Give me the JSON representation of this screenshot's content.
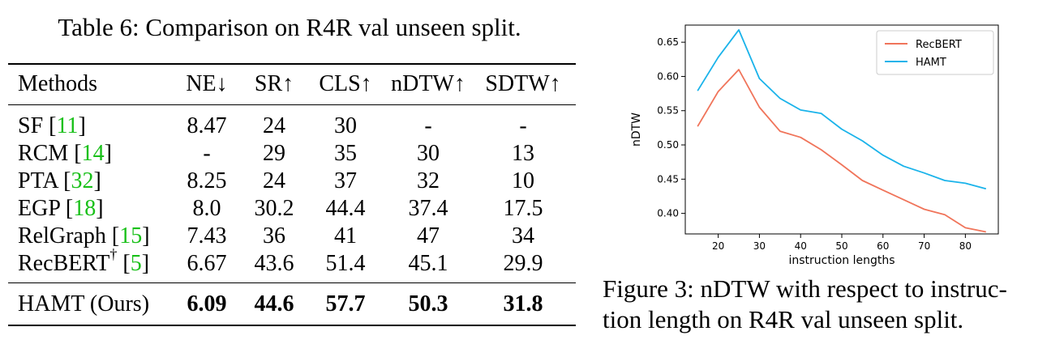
{
  "table": {
    "caption": "Table 6: Comparison on R4R val unseen split.",
    "headers": [
      "Methods",
      "NE↓",
      "SR↑",
      "CLS↑",
      "nDTW↑",
      "SDTW↑"
    ],
    "rows": [
      {
        "method": "SF [",
        "cite": "11",
        "close": "]",
        "dagger": "",
        "ne": "8.47",
        "sr": "24",
        "cls": "30",
        "ndtw": "-",
        "sdtw": "-"
      },
      {
        "method": "RCM [",
        "cite": "14",
        "close": "]",
        "dagger": "",
        "ne": "-",
        "sr": "29",
        "cls": "35",
        "ndtw": "30",
        "sdtw": "13"
      },
      {
        "method": "PTA [",
        "cite": "32",
        "close": "]",
        "dagger": "",
        "ne": "8.25",
        "sr": "24",
        "cls": "37",
        "ndtw": "32",
        "sdtw": "10"
      },
      {
        "method": "EGP [",
        "cite": "18",
        "close": "]",
        "dagger": "",
        "ne": "8.0",
        "sr": "30.2",
        "cls": "44.4",
        "ndtw": "37.4",
        "sdtw": "17.5"
      },
      {
        "method": "RelGraph [",
        "cite": "15",
        "close": "]",
        "dagger": "",
        "ne": "7.43",
        "sr": "36",
        "cls": "41",
        "ndtw": "47",
        "sdtw": "34"
      },
      {
        "method": "RecBERT",
        "cite": "5",
        "close": "]",
        "dagger": "†",
        "pre": " [",
        "ne": "6.67",
        "sr": "43.6",
        "cls": "51.4",
        "ndtw": "45.1",
        "sdtw": "29.9"
      }
    ],
    "final_row": {
      "method": "HAMT (Ours)",
      "ne": "6.09",
      "sr": "44.6",
      "cls": "57.7",
      "ndtw": "50.3",
      "sdtw": "31.8"
    }
  },
  "figure": {
    "caption_line1": "Figure 3: nDTW with respect to instruc-",
    "caption_line2": "tion length on R4R val unseen split."
  },
  "chart_data": {
    "type": "line",
    "xlabel": "instruction lengths",
    "ylabel": "nDTW",
    "xlim": [
      12,
      88
    ],
    "ylim": [
      0.37,
      0.675
    ],
    "xticks": [
      20,
      30,
      40,
      50,
      60,
      70,
      80
    ],
    "yticks": [
      0.4,
      0.45,
      0.5,
      0.55,
      0.6,
      0.65
    ],
    "ytick_labels": [
      "0.40",
      "0.45",
      "0.50",
      "0.55",
      "0.60",
      "0.65"
    ],
    "grid": false,
    "legend": "top-right",
    "x": [
      15,
      20,
      25,
      30,
      35,
      40,
      45,
      50,
      55,
      60,
      65,
      70,
      75,
      80,
      85
    ],
    "series": [
      {
        "name": "RecBERT",
        "color": "#f0745a",
        "values": [
          0.527,
          0.578,
          0.61,
          0.555,
          0.52,
          0.511,
          0.493,
          0.471,
          0.448,
          0.434,
          0.42,
          0.406,
          0.398,
          0.379,
          0.373
        ]
      },
      {
        "name": "HAMT",
        "color": "#1ab3ea",
        "values": [
          0.579,
          0.628,
          0.668,
          0.597,
          0.568,
          0.551,
          0.546,
          0.523,
          0.506,
          0.485,
          0.469,
          0.459,
          0.448,
          0.444,
          0.436
        ]
      }
    ]
  }
}
